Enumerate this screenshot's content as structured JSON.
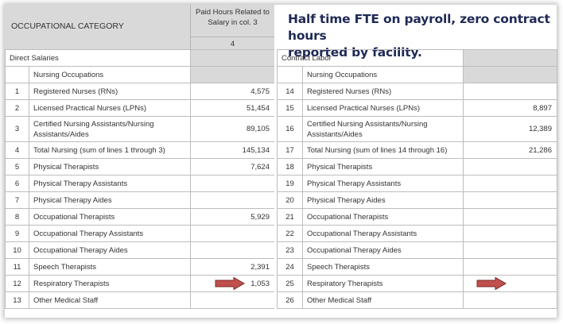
{
  "header": {
    "category_label": "OCCUPATIONAL CATEGORY",
    "col4_line1": "Paid Hours Related to",
    "col4_line2": "Salary in col. 3",
    "col4_number": "4"
  },
  "callout": {
    "line1": "Half time FTE on payroll, zero contract hours",
    "line2": "reported by facility."
  },
  "direct": {
    "section_label": "Direct Salaries",
    "subheader": "Nursing Occupations",
    "rows": [
      {
        "num": "1",
        "label": "Registered Nurses (RNs)",
        "value": "4,575"
      },
      {
        "num": "2",
        "label": "Licensed Practical Nurses (LPNs)",
        "value": "51,454"
      },
      {
        "num": "3",
        "label": "Certified Nursing Assistants/Nursing Assistants/Aides",
        "value": "89,105"
      },
      {
        "num": "4",
        "label": "Total Nursing (sum of lines 1 through 3)",
        "value": "145,134"
      },
      {
        "num": "5",
        "label": "Physical Therapists",
        "value": "7,624"
      },
      {
        "num": "6",
        "label": "Physical Therapy Assistants",
        "value": ""
      },
      {
        "num": "7",
        "label": "Physical Therapy Aides",
        "value": ""
      },
      {
        "num": "8",
        "label": "Occupational Therapists",
        "value": "5,929"
      },
      {
        "num": "9",
        "label": "Occupational Therapy Assistants",
        "value": ""
      },
      {
        "num": "10",
        "label": "Occupational Therapy Aides",
        "value": ""
      },
      {
        "num": "11",
        "label": "Speech Therapists",
        "value": "2,391"
      },
      {
        "num": "12",
        "label": "Respiratory Therapists",
        "value": "1,053"
      },
      {
        "num": "13",
        "label": "Other Medical Staff",
        "value": ""
      }
    ]
  },
  "contract": {
    "section_label": "Contract Labor",
    "subheader": "Nursing Occupations",
    "rows": [
      {
        "num": "14",
        "label": "Registered Nurses (RNs)",
        "value": ""
      },
      {
        "num": "15",
        "label": "Licensed Practical Nurses (LPNs)",
        "value": "8,897"
      },
      {
        "num": "16",
        "label": "Certified Nursing Assistants/Nursing Assistants/Aides",
        "value": "12,389"
      },
      {
        "num": "17",
        "label": "Total Nursing (sum of lines 14 through 16)",
        "value": "21,286"
      },
      {
        "num": "18",
        "label": "Physical Therapists",
        "value": ""
      },
      {
        "num": "19",
        "label": "Physical Therapy Assistants",
        "value": ""
      },
      {
        "num": "20",
        "label": "Physical Therapy Aides",
        "value": ""
      },
      {
        "num": "21",
        "label": "Occupational Therapists",
        "value": ""
      },
      {
        "num": "22",
        "label": "Occupational Therapy Assistants",
        "value": ""
      },
      {
        "num": "23",
        "label": "Occupational Therapy Aides",
        "value": ""
      },
      {
        "num": "24",
        "label": "Speech Therapists",
        "value": ""
      },
      {
        "num": "25",
        "label": "Respiratory Therapists",
        "value": ""
      },
      {
        "num": "26",
        "label": "Other Medical Staff",
        "value": ""
      }
    ]
  },
  "colors": {
    "header_gray": "#d9d9d9",
    "arrow_fill": "#c0504d",
    "callout_text": "#1f2a55"
  },
  "icons": {
    "highlight_arrow": "right-arrow-icon"
  }
}
